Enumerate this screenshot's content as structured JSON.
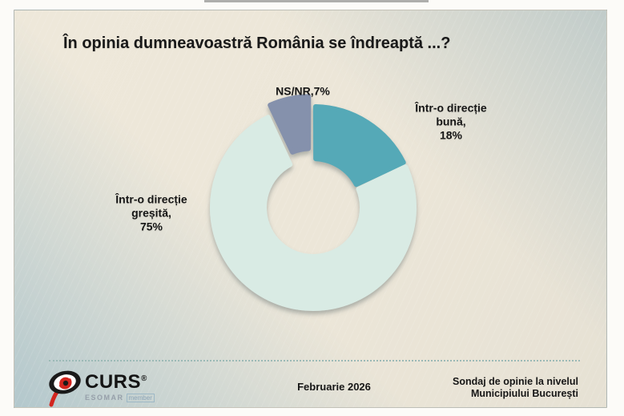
{
  "slide": {
    "title": "În opinia dumneavoastră România se îndreaptă ...?"
  },
  "callouts": {
    "nsnr": "NS/NR,7%",
    "buna": "Într-o direcție\nbună,\n18%",
    "gresita": "Într-o direcție\ngreșită,\n75%"
  },
  "footer": {
    "date": "Februarie 2026",
    "note_line1": "Sondaj de opinie la nivelul",
    "note_line2": "Municipiului București",
    "brand": "CURS",
    "registered": "®",
    "esomar": "ESOMAR",
    "member": "member"
  },
  "colors": {
    "good": "#55a9b7",
    "wrong": "#d9ebe4",
    "nsnr": "#8591ac",
    "background_beige": "#ece6d8",
    "background_gray": "#c3d2d5",
    "dotted_line": "#9bb9b6",
    "text": "#191919",
    "logo_red": "#d2251f",
    "logo_black": "#1a1a1a"
  },
  "chart_data": {
    "type": "pie",
    "subtype": "donut",
    "title": "În opinia dumneavoastră România se îndreaptă ...?",
    "slices": [
      {
        "label": "Într-o direcție bună",
        "value": 18,
        "value_label": "18%",
        "color": "#55a9b7",
        "exploded": false
      },
      {
        "label": "Într-o direcție greșită",
        "value": 75,
        "value_label": "75%",
        "color": "#d9ebe4",
        "exploded": false
      },
      {
        "label": "NS/NR",
        "value": 7,
        "value_label": "7%",
        "color": "#8591ac",
        "exploded": true
      }
    ],
    "start_angle_deg": 0,
    "direction": "clockwise",
    "inner_radius_ratio": 0.45,
    "legend": "none",
    "data_labels": "outside"
  }
}
